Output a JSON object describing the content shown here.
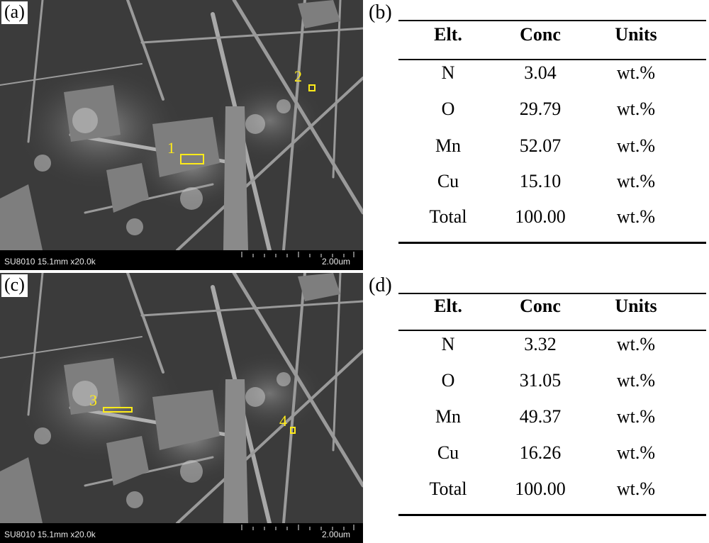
{
  "panels": [
    {
      "label": "(a)",
      "info_left": "SU8010 15.1mm x20.0k",
      "info_right": "2.00um",
      "markers": [
        "1",
        "2"
      ]
    },
    {
      "label": "(c)",
      "info_left": "SU8010 15.1mm x20.0k",
      "info_right": "2.00um",
      "markers": [
        "3",
        "4"
      ]
    }
  ],
  "tables": [
    {
      "label": "(b)",
      "headers": [
        "Elt.",
        "Conc",
        "Units"
      ],
      "rows": [
        [
          "N",
          "3.04",
          "wt.%"
        ],
        [
          "O",
          "29.79",
          "wt.%"
        ],
        [
          "Mn",
          "52.07",
          "wt.%"
        ],
        [
          "Cu",
          "15.10",
          "wt.%"
        ],
        [
          "Total",
          "100.00",
          "wt.%"
        ]
      ]
    },
    {
      "label": "(d)",
      "headers": [
        "Elt.",
        "Conc",
        "Units"
      ],
      "rows": [
        [
          "N",
          "3.32",
          "wt.%"
        ],
        [
          "O",
          "31.05",
          "wt.%"
        ],
        [
          "Mn",
          "49.37",
          "wt.%"
        ],
        [
          "Cu",
          "16.26",
          "wt.%"
        ],
        [
          "Total",
          "100.00",
          "wt.%"
        ]
      ]
    }
  ],
  "colors": {
    "marker": "#ffeb1a",
    "sem_background": "#3a3a3a"
  }
}
